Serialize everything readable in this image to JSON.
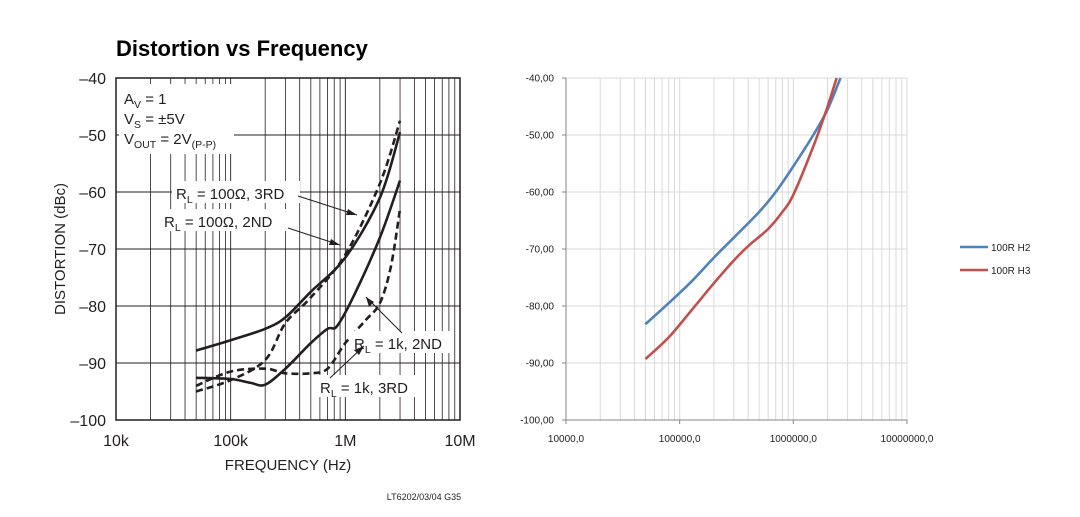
{
  "chart_data": [
    {
      "type": "line",
      "title": "Distortion vs Frequency",
      "xlabel": "FREQUENCY (Hz)",
      "ylabel": "DISTORTION (dBc)",
      "x_scale": "log",
      "xlim": [
        10000,
        10000000
      ],
      "ylim": [
        -100,
        -40
      ],
      "x_tick_labels": [
        "10k",
        "100k",
        "1M",
        "10M"
      ],
      "y_tick_labels": [
        "–40",
        "–50",
        "–60",
        "–70",
        "–80",
        "–90",
        "–100"
      ],
      "grid": true,
      "conditions": {
        "av": {
          "main": "A",
          "sub": "V",
          "rest": " = 1"
        },
        "vs": {
          "main": "V",
          "sub": "S",
          "rest": " = ±5V"
        },
        "vout": {
          "main": "V",
          "sub": "OUT",
          "rest": " = 2V",
          "sub2": "(P-P)"
        }
      },
      "series": [
        {
          "label_main": "R",
          "label_sub": "L",
          "label_rest": " = 100Ω, 3RD",
          "style": "dashed",
          "x": [
            50000,
            100000,
            200000,
            300000,
            500000,
            1000000,
            2000000,
            3000000
          ],
          "y": [
            -95,
            -93,
            -89.5,
            -83,
            -78.5,
            -71,
            -58.5,
            -47.5
          ]
        },
        {
          "label_main": "R",
          "label_sub": "L",
          "label_rest": " = 100Ω, 2ND",
          "style": "solid",
          "x": [
            50000,
            100000,
            200000,
            300000,
            500000,
            1000000,
            2000000,
            3000000
          ],
          "y": [
            -87.8,
            -86,
            -84,
            -82,
            -77.5,
            -71.5,
            -61,
            -49.5
          ]
        },
        {
          "label_main": "R",
          "label_sub": "L",
          "label_rest": " = 1k, 2ND",
          "style": "solid",
          "x": [
            50000,
            100000,
            150000,
            200000,
            300000,
            500000,
            700000,
            850000,
            1200000,
            2000000,
            3000000
          ],
          "y": [
            -92.6,
            -92.8,
            -93.5,
            -93.8,
            -91,
            -86.5,
            -84,
            -83.5,
            -78,
            -68,
            -58
          ]
        },
        {
          "label_main": "R",
          "label_sub": "L",
          "label_rest": " = 1k, 3RD",
          "style": "dashed",
          "x": [
            50000,
            100000,
            200000,
            300000,
            500000,
            700000,
            1000000,
            1500000,
            2000000,
            2500000,
            3000000
          ],
          "y": [
            -94,
            -91.5,
            -91,
            -91.8,
            -91.8,
            -91,
            -86.5,
            -82.5,
            -79.5,
            -73,
            -63
          ]
        }
      ],
      "footer_code": "LT6202/03/04 G35"
    },
    {
      "type": "line",
      "x_scale": "log",
      "xlim": [
        10000,
        10000000
      ],
      "ylim": [
        -100,
        -40
      ],
      "x_tick_labels": [
        "10000,0",
        "100000,0",
        "1000000,0",
        "10000000,0"
      ],
      "y_tick_labels": [
        "-40,00",
        "-50,00",
        "-60,00",
        "-70,00",
        "-80,00",
        "-90,00",
        "-100,00"
      ],
      "grid": true,
      "legend": "right",
      "series": [
        {
          "name": "100R H2",
          "color": "#4f81bd",
          "x": [
            50000,
            80000,
            130000,
            200000,
            300000,
            500000,
            700000,
            1000000,
            1500000,
            2000000,
            2600000
          ],
          "y": [
            -83.2,
            -79.5,
            -75.5,
            -71.5,
            -68,
            -63.5,
            -60,
            -55.5,
            -50,
            -45.5,
            -40
          ]
        },
        {
          "name": "100R H3",
          "color": "#c0504d",
          "x": [
            50000,
            80000,
            130000,
            200000,
            300000,
            400000,
            600000,
            800000,
            1000000,
            1500000,
            2000000,
            2400000
          ],
          "y": [
            -89.3,
            -85.5,
            -80.5,
            -76,
            -72,
            -69.5,
            -66.5,
            -63.5,
            -60.5,
            -52,
            -45,
            -40
          ]
        }
      ]
    }
  ]
}
